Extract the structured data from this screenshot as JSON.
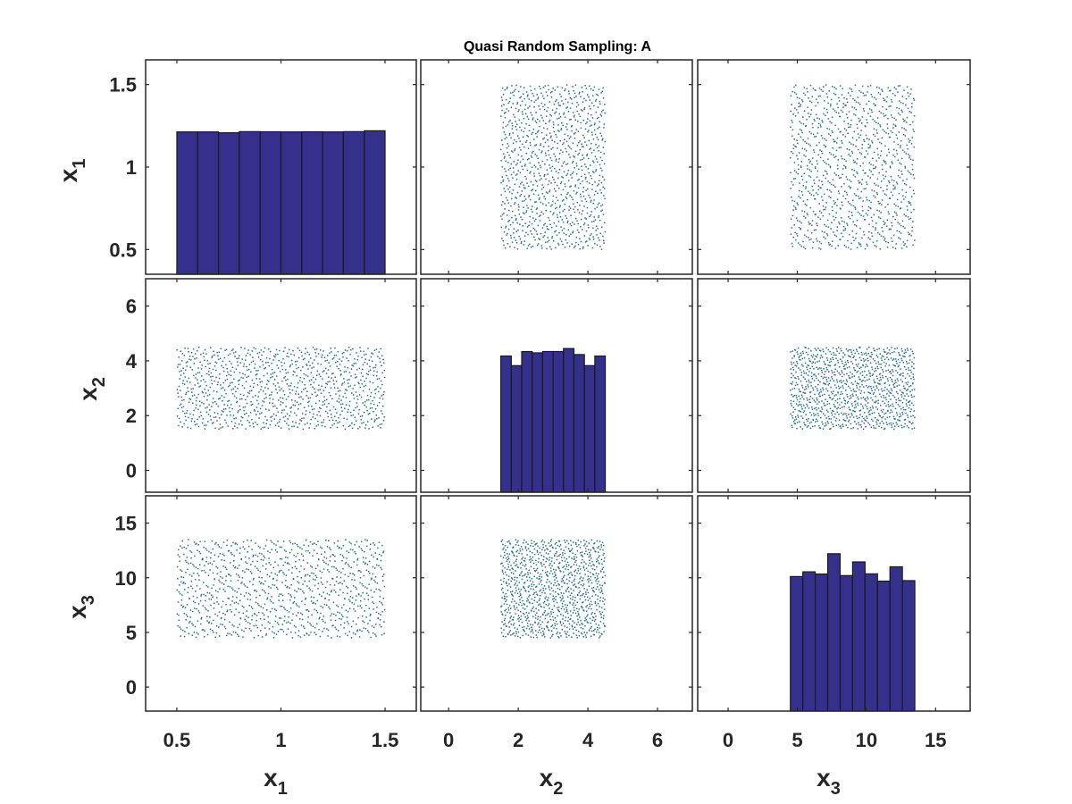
{
  "chart_data": {
    "type": "scatter-matrix",
    "title": "Quasi Random Sampling: A",
    "variables": [
      {
        "label_base": "x",
        "label_sub": "1",
        "range": [
          0.5,
          1.5
        ],
        "axis_lim": [
          0.35,
          1.65
        ],
        "ticks": [
          0.5,
          1,
          1.5
        ],
        "tick_labels": [
          "0.5",
          "1",
          "1.5"
        ]
      },
      {
        "label_base": "x",
        "label_sub": "2",
        "range": [
          1.5,
          4.5
        ],
        "axis_lim": [
          -0.8,
          7.0
        ],
        "ticks": [
          0,
          2,
          4,
          6
        ],
        "tick_labels": [
          "0",
          "2",
          "4",
          "6"
        ]
      },
      {
        "label_base": "x",
        "label_sub": "3",
        "range": [
          4.5,
          13.5
        ],
        "axis_lim": [
          -2.2,
          17.5
        ],
        "ticks": [
          0,
          5,
          10,
          15
        ],
        "tick_labels": [
          "0",
          "5",
          "10",
          "15"
        ]
      }
    ],
    "histograms": [
      {
        "variable": "x1",
        "bin_edges": [
          0.5,
          0.6,
          0.7,
          0.8,
          0.9,
          1.0,
          1.1,
          1.2,
          1.3,
          1.4,
          1.5
        ],
        "heights_rel": [
          0.992,
          0.992,
          0.986,
          0.994,
          0.993,
          0.992,
          0.993,
          0.992,
          0.994,
          1.0
        ]
      },
      {
        "variable": "x2",
        "bin_edges": [
          1.5,
          1.8,
          2.1,
          2.4,
          2.7,
          3.0,
          3.3,
          3.6,
          3.9,
          4.2,
          4.5
        ],
        "heights_rel": [
          0.948,
          0.881,
          0.979,
          0.97,
          0.979,
          0.979,
          1.0,
          0.958,
          0.881,
          0.948
        ]
      },
      {
        "variable": "x3",
        "bin_edges": [
          4.5,
          5.4,
          6.3,
          7.2,
          8.1,
          9.0,
          9.9,
          10.8,
          11.7,
          12.6,
          13.5
        ],
        "heights_rel": [
          0.855,
          0.885,
          0.871,
          1.0,
          0.861,
          0.948,
          0.872,
          0.826,
          0.917,
          0.829
        ]
      }
    ],
    "scatter": {
      "sequence": "quasi-random (Halton)",
      "n_points": 1000,
      "point_color": "#2a6f8f"
    },
    "bar_color": "#34308c",
    "bar_edge_color": "#1a1a1a",
    "axes_color": "#262626",
    "grid": false
  }
}
